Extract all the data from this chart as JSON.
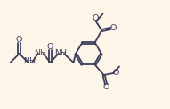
{
  "bg_color": "#fdf6e8",
  "line_color": "#3d3d5c",
  "line_width": 1.3,
  "font_size": 6.8,
  "figsize": [
    1.91,
    1.22
  ],
  "dpi": 100,
  "xlim": [
    0,
    9.5
  ],
  "ylim": [
    0.5,
    6.5
  ]
}
